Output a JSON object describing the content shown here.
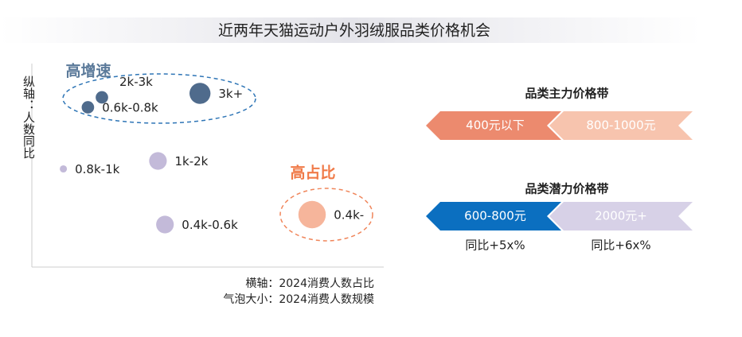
{
  "chart_data": {
    "type": "bubble",
    "title": "近两年天猫运动户外羽绒服品类价格机会",
    "y_label": "纵轴：人数同比",
    "x_note": "横轴：2024消费人数占比",
    "size_note": "气泡大小：2024消费人数规模",
    "annotations": [
      "高增速",
      "高占比"
    ],
    "categories": [
      "2k-3k",
      "0.6k-0.8k",
      "3k+",
      "0.8k-1k",
      "1k-2k",
      "0.4k-0.6k",
      "0.4k-"
    ],
    "x": [
      20,
      16,
      48,
      9,
      36,
      38,
      80
    ],
    "values": [
      85,
      80,
      87,
      49,
      53,
      21,
      26
    ],
    "sizes": [
      6,
      6,
      17,
      2,
      12,
      12,
      29
    ],
    "colors": [
      "#4f6b8c",
      "#4f6b8c",
      "#4f6b8c",
      "#c3bad9",
      "#c3bad9",
      "#c3bad9",
      "#f6b59b"
    ],
    "xlim": [
      0,
      100
    ],
    "ylim": [
      0,
      100
    ]
  },
  "price_bands": {
    "main_title": "品类主力价格带",
    "main": [
      "400元以下",
      "800-1000元"
    ],
    "potential_title": "品类潜力价格带",
    "potential": [
      "600-800元",
      "2000元+"
    ],
    "potential_growth": [
      "同比+5x%",
      "同比+6x%"
    ]
  }
}
